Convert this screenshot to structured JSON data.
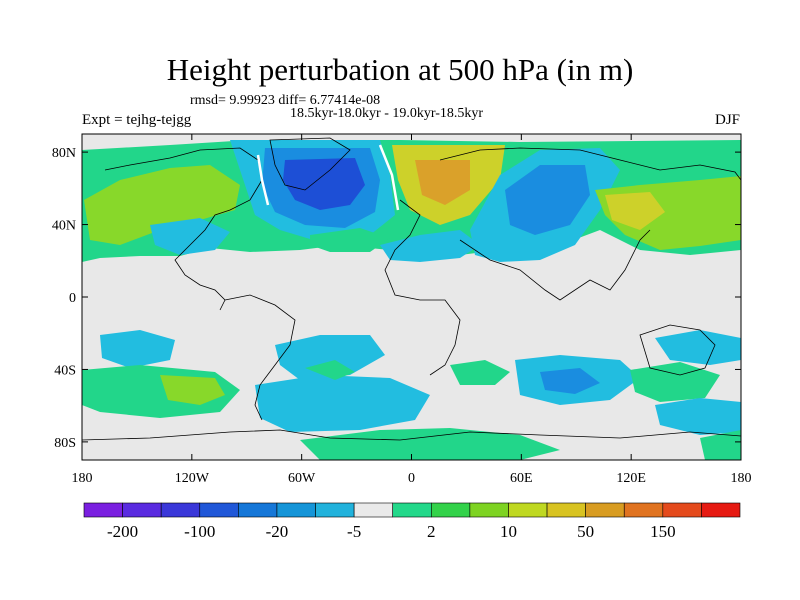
{
  "title": "Height perturbation at 500 hPa (in m)",
  "stats": "rmsd= 9.99923 diff= 6.77414e-08",
  "period": "18.5kyr-18.0kyr - 19.0kyr-18.5kyr",
  "experiment": "Expt = tejhg-tejgg",
  "season": "DJF",
  "lat_ticks": [
    "80N",
    "40N",
    "0",
    "40S",
    "80S"
  ],
  "lat_values": [
    80,
    40,
    0,
    -40,
    -80
  ],
  "lon_ticks": [
    "180",
    "120W",
    "60W",
    "0",
    "60E",
    "120E",
    "180"
  ],
  "lon_values": [
    -180,
    -120,
    -60,
    0,
    60,
    120,
    180
  ],
  "colorbar": {
    "labels": [
      "-200",
      "-100",
      "-20",
      "-5",
      "2",
      "10",
      "50",
      "150"
    ],
    "colors": [
      "#7a1fe0",
      "#5a2be0",
      "#3a37d9",
      "#2057d8",
      "#1577d8",
      "#1595d8",
      "#21b2dc",
      "#eaeaea",
      "#23d88a",
      "#33d24a",
      "#7ed322",
      "#bfd821",
      "#d8c321",
      "#d89c21",
      "#e07320",
      "#e44a1c",
      "#e61a12"
    ]
  },
  "field_colors": {
    "neutral": "#e8e8e8",
    "weak_neg": "#22bde0",
    "mid_neg": "#1a8de0",
    "strong_neg": "#1d4fd6",
    "weak_pos": "#22d68a",
    "mid_pos": "#88d82a",
    "strong_pos": "#cdd12a",
    "peak_pos": "#daa12a"
  }
}
